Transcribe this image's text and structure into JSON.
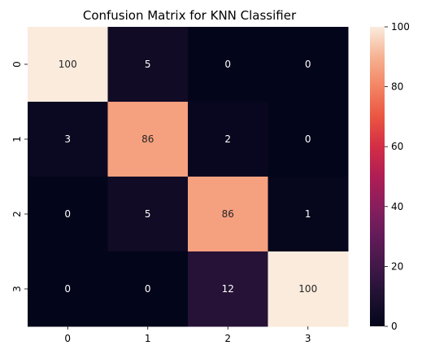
{
  "chart_data": {
    "type": "heatmap",
    "title": "Confusion Matrix for KNN Classifier",
    "x_categories": [
      "0",
      "1",
      "2",
      "3"
    ],
    "y_categories": [
      "0",
      "1",
      "2",
      "3"
    ],
    "values": [
      [
        100,
        5,
        0,
        0
      ],
      [
        3,
        86,
        2,
        0
      ],
      [
        0,
        5,
        86,
        1
      ],
      [
        0,
        0,
        12,
        100
      ]
    ],
    "colorbar": {
      "min": 0,
      "max": 100,
      "ticks": [
        0,
        20,
        40,
        60,
        80,
        100
      ]
    },
    "colormap": "rocket",
    "grid": false,
    "legend": "colorbar-right"
  }
}
